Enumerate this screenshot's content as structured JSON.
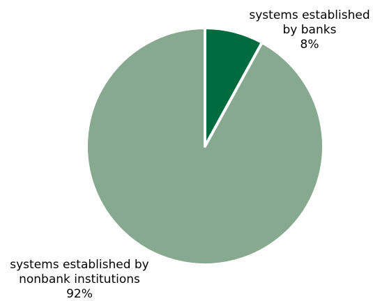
{
  "chart_data": {
    "type": "pie",
    "start_angle_deg": 0,
    "direction": "clockwise",
    "slices": [
      {
        "value": 8,
        "label_lines": [
          "systems established",
          "by banks",
          "8%"
        ],
        "color": "#006b3f"
      },
      {
        "value": 92,
        "label_lines": [
          "systems established by",
          "nonbank institutions",
          "92%"
        ],
        "color": "#86a98f"
      }
    ],
    "slice_border_color": "#ffffff"
  }
}
